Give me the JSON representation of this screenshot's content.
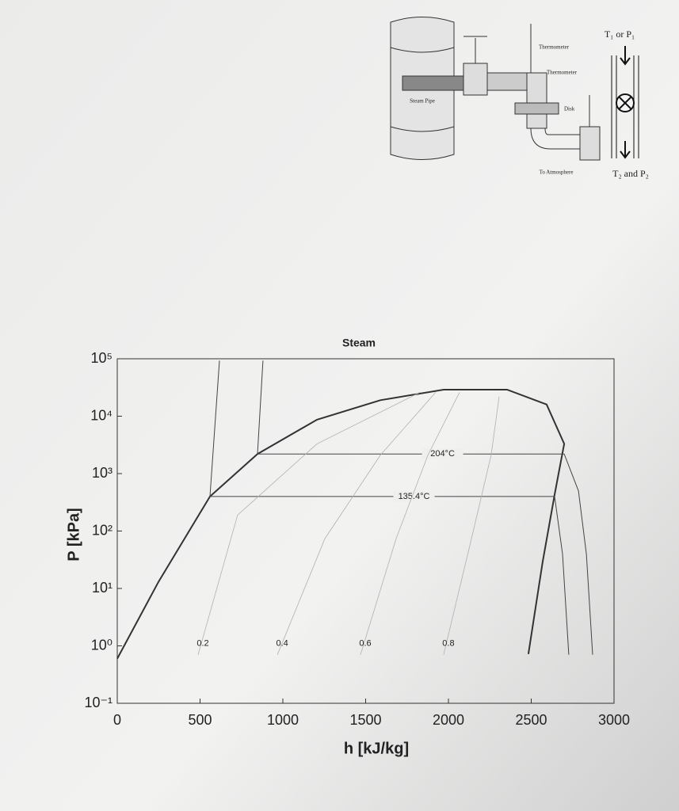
{
  "diagram": {
    "thermometer_top": "Thermometer",
    "thermometer_bottom": "Thermometer",
    "steam_pipe": "Steam Pipe",
    "disk": "Disk",
    "outlet": "To Atmosphere",
    "inlet_state": "T₁ or P₁",
    "outlet_state": "T₂ and P₂"
  },
  "chart_data": {
    "type": "line",
    "title": "Steam",
    "xlabel": "h [kJ/kg]",
    "ylabel": "P [kPa]",
    "xlim": [
      0,
      3000
    ],
    "xticks": [
      0,
      500,
      1000,
      1500,
      2000,
      2500,
      3000
    ],
    "ylim": [
      0.1,
      100000
    ],
    "yscale": "log",
    "yticks": [
      {
        "value": 0.1,
        "label": "10⁻¹"
      },
      {
        "value": 1,
        "label": "10⁰"
      },
      {
        "value": 10,
        "label": "10¹"
      },
      {
        "value": 100,
        "label": "10²"
      },
      {
        "value": 1000,
        "label": "10³"
      },
      {
        "value": 10000,
        "label": "10⁴"
      },
      {
        "value": 100000,
        "label": "10⁵"
      }
    ],
    "series": [
      {
        "color": "#333333",
        "x": [
          0,
          249,
          560,
          847,
          1206,
          1589,
          1971,
          2354,
          2593,
          2699,
          2641,
          2569,
          2483
        ],
        "values": [
          0.6,
          13,
          400,
          2200,
          8700,
          19000,
          29000,
          29000,
          16000,
          3300,
          430,
          29,
          0.72
        ]
      },
      {
        "name": "204°C",
        "color": "#444444",
        "x": [
          880,
          847,
          2699,
          2785,
          2833,
          2871
        ],
        "values": [
          93000,
          2200,
          2200,
          500,
          40,
          0.7
        ]
      },
      {
        "name": "135.4°C",
        "color": "#444444",
        "x": [
          617,
          560,
          2641,
          2689,
          2727
        ],
        "values": [
          93000,
          400,
          400,
          40,
          0.7
        ]
      },
      {
        "name": "0.2",
        "color": "#b0b0b0",
        "x": [
          488,
          727,
          1206,
          1828
        ],
        "values": [
          0.7,
          190,
          3300,
          26000
        ]
      },
      {
        "name": "0.4",
        "color": "#b0b0b0",
        "x": [
          967,
          1254,
          1589,
          1923
        ],
        "values": [
          0.7,
          74,
          2100,
          26000
        ]
      },
      {
        "name": "0.6",
        "color": "#b0b0b0",
        "x": [
          1469,
          1684,
          1876,
          2067
        ],
        "values": [
          0.7,
          74,
          2100,
          26000
        ]
      },
      {
        "name": "0.8",
        "color": "#b0b0b0",
        "x": [
          1971,
          2139,
          2258,
          2306
        ],
        "values": [
          0.7,
          74,
          2100,
          22000
        ]
      }
    ]
  }
}
